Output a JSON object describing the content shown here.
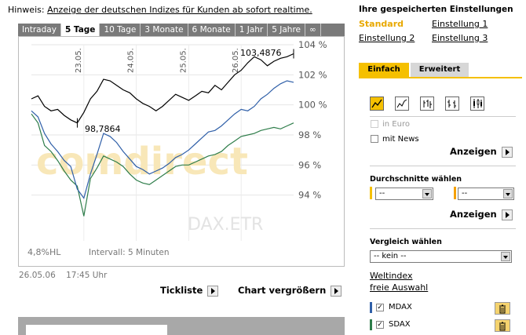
{
  "hint": {
    "prefix": "Hinweis:",
    "link": "Anzeige der deutschen Indizes für Kunden ab sofort realtime."
  },
  "tabs": [
    "Intraday",
    "5 Tage",
    "10 Tage",
    "3 Monate",
    "6 Monate",
    "1 Jahr",
    "5 Jahre",
    "∞"
  ],
  "active_tab": "5 Tage",
  "chart": {
    "watermark": "comdirect",
    "instrument_label": "DAX.ETR",
    "day_labels": [
      "23.05.",
      "24.05.",
      "25.05.",
      "26.05."
    ],
    "high_label": "103,4876",
    "low_label": "98,7864",
    "stat_hl": "4,8%HL",
    "interval": "Intervall: 5 Minuten"
  },
  "chart_data": {
    "type": "line",
    "x": [
      0,
      1,
      2,
      3,
      4,
      5,
      6,
      7,
      8,
      9,
      10,
      11,
      12,
      13,
      14,
      15,
      16,
      17,
      18,
      19,
      20,
      21,
      22,
      23,
      24,
      25,
      26,
      27,
      28,
      29,
      30,
      31,
      32,
      33,
      34,
      35,
      36,
      37,
      38,
      39,
      40
    ],
    "series": [
      {
        "name": "DAX.ETR",
        "color": "#000000",
        "values": [
          100.4,
          100.6,
          99.9,
          99.6,
          99.7,
          99.3,
          99.0,
          98.8,
          99.5,
          100.4,
          100.9,
          101.7,
          101.6,
          101.3,
          101.0,
          100.8,
          100.4,
          100.1,
          99.9,
          99.6,
          99.9,
          100.3,
          100.7,
          100.5,
          100.3,
          100.6,
          100.9,
          100.8,
          101.3,
          101.0,
          101.5,
          102.0,
          102.3,
          102.8,
          103.2,
          103.0,
          102.6,
          102.9,
          103.1,
          103.2,
          103.4
        ]
      },
      {
        "name": "MDAX",
        "color": "#2f5fa8",
        "values": [
          99.6,
          99.2,
          98.1,
          97.4,
          96.9,
          96.3,
          95.9,
          94.4,
          93.8,
          95.4,
          96.7,
          98.1,
          97.9,
          97.5,
          96.9,
          96.4,
          95.9,
          95.7,
          95.4,
          95.6,
          95.8,
          96.1,
          96.5,
          96.7,
          97.0,
          97.4,
          97.8,
          98.2,
          98.3,
          98.6,
          99.0,
          99.4,
          99.7,
          99.6,
          99.9,
          100.4,
          100.7,
          101.1,
          101.4,
          101.6,
          101.5
        ]
      },
      {
        "name": "SDAX",
        "color": "#2e7d4a",
        "values": [
          99.4,
          98.8,
          97.3,
          96.9,
          96.3,
          95.6,
          95.0,
          94.6,
          92.6,
          95.1,
          95.8,
          96.6,
          96.4,
          96.2,
          95.9,
          95.4,
          95.0,
          94.8,
          94.7,
          95.0,
          95.3,
          95.6,
          95.9,
          96.0,
          96.0,
          96.2,
          96.4,
          96.6,
          96.7,
          96.9,
          97.3,
          97.6,
          97.9,
          98.0,
          98.1,
          98.3,
          98.4,
          98.5,
          98.4,
          98.6,
          98.8
        ]
      }
    ],
    "ylim": [
      92,
      104
    ],
    "yticks": [
      "104 %",
      "102 %",
      "100 %",
      "98 %",
      "96 %",
      "94 %"
    ],
    "grid": true
  },
  "date_info": {
    "date": "26.05.06",
    "time": "17:45 Uhr"
  },
  "buttons": {
    "tickliste": "Tickliste",
    "vergroessern": "Chart vergrößern"
  },
  "right_panel": {
    "title": "Ihre gespeicherten Einstellungen",
    "settings": [
      "Standard",
      "Einstellung 1",
      "Einstellung 2",
      "Einstellung 3"
    ],
    "tabs": [
      "Einfach",
      "Erweitert"
    ],
    "in_euro": "in Euro",
    "mit_news": "mit News",
    "anzeigen": "Anzeigen",
    "durchschnitte_title": "Durchschnitte wählen",
    "select_dash": "--",
    "vergleich_title": "Vergleich wählen",
    "vergleich_value": "-- kein --",
    "weltindex": "Weltindex",
    "freie_auswahl": "freie Auswahl",
    "compare": [
      {
        "name": "MDAX",
        "color": "#2f5fa8"
      },
      {
        "name": "SDAX",
        "color": "#2e7d4a"
      }
    ]
  }
}
